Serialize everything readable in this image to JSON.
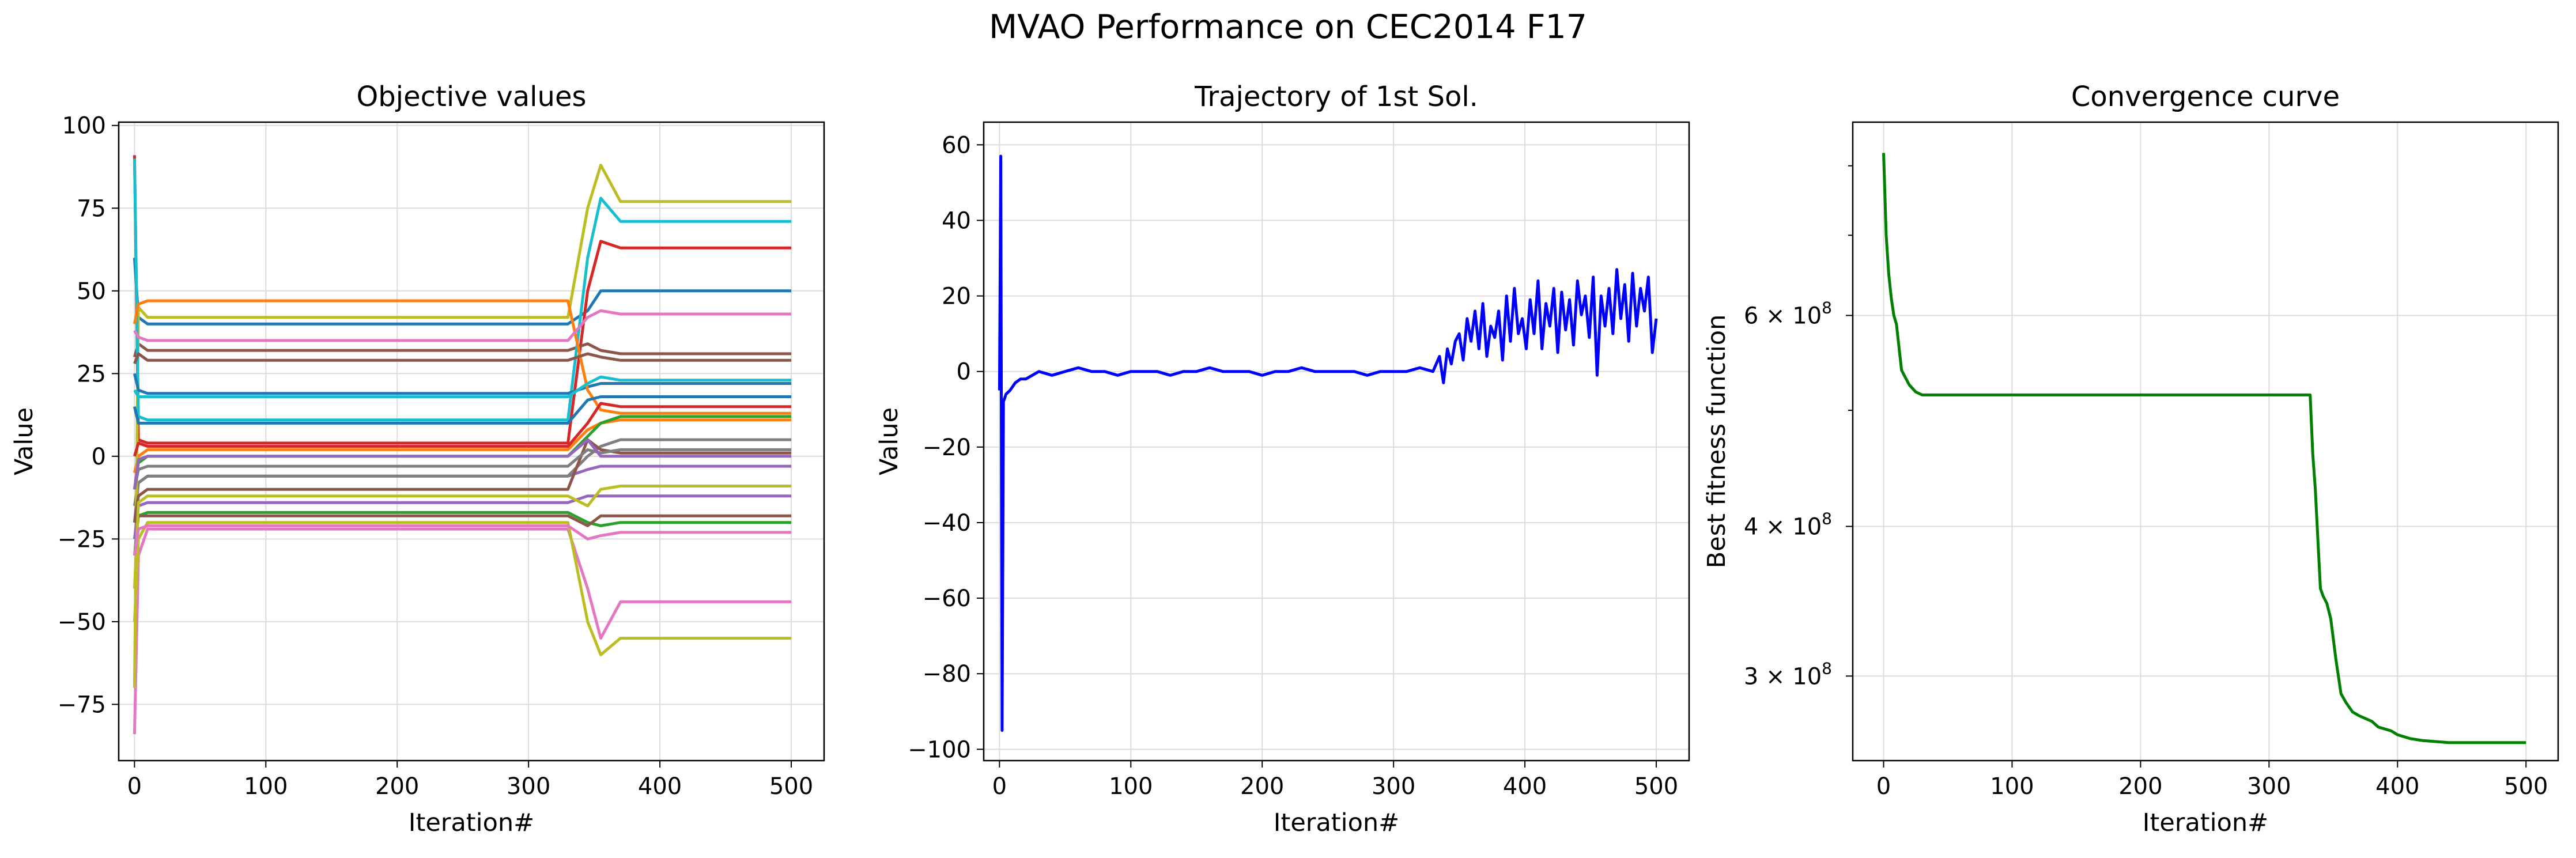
{
  "figure": {
    "title": "MVAO Performance on CEC2014 F17"
  },
  "chart_data": [
    {
      "type": "line",
      "title": "Objective values",
      "xlabel": "Iteration#",
      "ylabel": "Value",
      "xlim": [
        -12,
        525
      ],
      "ylim": [
        -92,
        101
      ],
      "xticks": [
        0,
        100,
        200,
        300,
        400,
        500
      ],
      "yticks": [
        -75,
        -50,
        -25,
        0,
        25,
        50,
        75,
        100
      ],
      "ytick_labels": [
        "−75",
        "−50",
        "−25",
        "0",
        "25",
        "50",
        "75",
        "100"
      ],
      "grid": true,
      "series_note_color_cycle": [
        "#1f77b4",
        "#ff7f0e",
        "#2ca02c",
        "#d62728",
        "#9467bd",
        "#8c564b",
        "#e377c2",
        "#7f7f7f",
        "#bcbd22",
        "#17becf"
      ],
      "series": [
        {
          "color": "#1f77b4",
          "x": [
            0,
            3,
            10,
            30,
            330,
            345,
            355,
            370,
            500
          ],
          "y": [
            60,
            42,
            40,
            40,
            40,
            44,
            50,
            50,
            50
          ]
        },
        {
          "color": "#ff7f0e",
          "x": [
            0,
            3,
            10,
            30,
            330,
            345,
            355,
            370,
            500
          ],
          "y": [
            -5,
            0,
            2,
            2,
            2,
            8,
            10,
            11,
            11
          ]
        },
        {
          "color": "#2ca02c",
          "x": [
            0,
            3,
            10,
            30,
            330,
            345,
            355,
            370,
            500
          ],
          "y": [
            -10,
            -2,
            0,
            0,
            0,
            6,
            10,
            12,
            12
          ]
        },
        {
          "color": "#d62728",
          "x": [
            0,
            3,
            10,
            30,
            330,
            345,
            355,
            370,
            500
          ],
          "y": [
            91,
            5,
            4,
            4,
            4,
            50,
            65,
            63,
            63
          ]
        },
        {
          "color": "#9467bd",
          "x": [
            0,
            3,
            10,
            30,
            330,
            345,
            355,
            370,
            500
          ],
          "y": [
            -20,
            -8,
            -6,
            -6,
            -6,
            -4,
            -3,
            -3,
            -3
          ]
        },
        {
          "color": "#8c564b",
          "x": [
            0,
            3,
            10,
            30,
            330,
            345,
            355,
            370,
            500
          ],
          "y": [
            30,
            34,
            32,
            32,
            32,
            34,
            32,
            31,
            31
          ]
        },
        {
          "color": "#e377c2",
          "x": [
            0,
            3,
            10,
            30,
            330,
            345,
            355,
            370,
            500
          ],
          "y": [
            -84,
            -30,
            -22,
            -22,
            -22,
            -40,
            -55,
            -44,
            -44
          ]
        },
        {
          "color": "#7f7f7f",
          "x": [
            0,
            3,
            10,
            30,
            330,
            345,
            355,
            370,
            500
          ],
          "y": [
            -15,
            -8,
            -6,
            -6,
            -6,
            0,
            3,
            5,
            5
          ]
        },
        {
          "color": "#bcbd22",
          "x": [
            0,
            3,
            10,
            30,
            330,
            345,
            355,
            370,
            500
          ],
          "y": [
            -70,
            45,
            42,
            42,
            42,
            75,
            88,
            77,
            77
          ]
        },
        {
          "color": "#17becf",
          "x": [
            0,
            3,
            10,
            30,
            330,
            345,
            355,
            370,
            500
          ],
          "y": [
            90,
            12,
            11,
            11,
            11,
            60,
            78,
            71,
            71
          ]
        },
        {
          "color": "#1f77b4",
          "x": [
            0,
            3,
            10,
            30,
            330,
            345,
            355,
            370,
            500
          ],
          "y": [
            25,
            20,
            19,
            19,
            19,
            21,
            22,
            22,
            22
          ]
        },
        {
          "color": "#ff7f0e",
          "x": [
            0,
            3,
            10,
            30,
            330,
            345,
            355,
            370,
            500
          ],
          "y": [
            40,
            46,
            47,
            47,
            47,
            20,
            14,
            13,
            13
          ]
        },
        {
          "color": "#2ca02c",
          "x": [
            0,
            3,
            10,
            30,
            330,
            345,
            355,
            370,
            500
          ],
          "y": [
            -30,
            -18,
            -17,
            -17,
            -17,
            -20,
            -21,
            -20,
            -20
          ]
        },
        {
          "color": "#d62728",
          "x": [
            0,
            3,
            10,
            30,
            330,
            345,
            355,
            370,
            500
          ],
          "y": [
            0,
            4,
            3,
            3,
            3,
            10,
            16,
            15,
            15
          ]
        },
        {
          "color": "#9467bd",
          "x": [
            0,
            3,
            10,
            30,
            330,
            345,
            355,
            370,
            500
          ],
          "y": [
            -25,
            -15,
            -14,
            -14,
            -14,
            -12,
            -12,
            -12,
            -12
          ]
        },
        {
          "color": "#8c564b",
          "x": [
            0,
            3,
            10,
            30,
            330,
            345,
            355,
            370,
            500
          ],
          "y": [
            -20,
            -12,
            -10,
            -10,
            -10,
            5,
            2,
            1,
            1
          ]
        },
        {
          "color": "#e377c2",
          "x": [
            0,
            3,
            10,
            30,
            330,
            345,
            355,
            370,
            500
          ],
          "y": [
            38,
            36,
            35,
            35,
            35,
            42,
            44,
            43,
            43
          ]
        },
        {
          "color": "#7f7f7f",
          "x": [
            0,
            3,
            10,
            30,
            330,
            345,
            355,
            370,
            500
          ],
          "y": [
            -10,
            -4,
            -3,
            -3,
            -3,
            2,
            1,
            2,
            2
          ]
        },
        {
          "color": "#bcbd22",
          "x": [
            0,
            3,
            10,
            30,
            330,
            345,
            355,
            370,
            500
          ],
          "y": [
            -50,
            -25,
            -20,
            -20,
            -20,
            -50,
            -60,
            -55,
            -55
          ]
        },
        {
          "color": "#17becf",
          "x": [
            0,
            3,
            10,
            30,
            330,
            345,
            355,
            370,
            500
          ],
          "y": [
            20,
            18,
            18,
            18,
            18,
            22,
            24,
            23,
            23
          ]
        },
        {
          "color": "#1f77b4",
          "x": [
            0,
            3,
            10,
            30,
            330,
            345,
            355,
            370,
            500
          ],
          "y": [
            15,
            10,
            10,
            10,
            10,
            17,
            18,
            18,
            18
          ]
        },
        {
          "color": "#8c564b",
          "x": [
            0,
            3,
            10,
            30,
            330,
            345,
            355,
            370,
            500
          ],
          "y": [
            -20,
            -18,
            -18,
            -18,
            -18,
            -21,
            -18,
            -18,
            -18
          ]
        },
        {
          "color": "#9467bd",
          "x": [
            0,
            3,
            10,
            30,
            330,
            345,
            355,
            370,
            500
          ],
          "y": [
            -10,
            -1,
            0,
            0,
            0,
            5,
            0,
            0,
            0
          ]
        },
        {
          "color": "#bcbd22",
          "x": [
            0,
            3,
            10,
            30,
            330,
            345,
            355,
            370,
            500
          ],
          "y": [
            -40,
            -14,
            -12,
            -12,
            -12,
            -15,
            -10,
            -9,
            -9
          ]
        },
        {
          "color": "#e377c2",
          "x": [
            0,
            3,
            10,
            30,
            330,
            345,
            355,
            370,
            500
          ],
          "y": [
            -30,
            -22,
            -21,
            -21,
            -21,
            -25,
            -24,
            -23,
            -23
          ]
        },
        {
          "color": "#8c564b",
          "x": [
            0,
            3,
            10,
            30,
            330,
            345,
            355,
            370,
            500
          ],
          "y": [
            28,
            31,
            29,
            29,
            29,
            31,
            30,
            29,
            29
          ]
        }
      ]
    },
    {
      "type": "line",
      "title": "Trajectory of 1st Sol.",
      "xlabel": "Iteration#",
      "ylabel": "Value",
      "xlim": [
        -12,
        525
      ],
      "ylim": [
        -103,
        66
      ],
      "xticks": [
        0,
        100,
        200,
        300,
        400,
        500
      ],
      "yticks": [
        -100,
        -80,
        -60,
        -40,
        -20,
        0,
        20,
        40,
        60
      ],
      "ytick_labels": [
        "−100",
        "−80",
        "−60",
        "−40",
        "−20",
        "0",
        "20",
        "40",
        "60"
      ],
      "grid": true,
      "series": [
        {
          "color": "#0000ff",
          "x": [
            0,
            1,
            2,
            3,
            5,
            8,
            12,
            16,
            20,
            25,
            30,
            40,
            50,
            60,
            70,
            80,
            90,
            100,
            110,
            120,
            130,
            140,
            150,
            160,
            170,
            180,
            190,
            200,
            210,
            220,
            230,
            240,
            250,
            260,
            270,
            280,
            290,
            300,
            310,
            320,
            330,
            335,
            338,
            341,
            344,
            347,
            350,
            353,
            356,
            359,
            362,
            365,
            368,
            371,
            374,
            377,
            380,
            383,
            386,
            389,
            392,
            395,
            398,
            401,
            404,
            407,
            410,
            413,
            416,
            419,
            422,
            425,
            428,
            431,
            434,
            437,
            440,
            443,
            446,
            449,
            452,
            455,
            458,
            461,
            464,
            467,
            470,
            473,
            476,
            479,
            482,
            485,
            488,
            491,
            494,
            497,
            500
          ],
          "y": [
            -5,
            57,
            -95,
            -8,
            -6,
            -5,
            -3,
            -2,
            -2,
            -1,
            0,
            -1,
            0,
            1,
            0,
            0,
            -1,
            0,
            0,
            0,
            -1,
            0,
            0,
            1,
            0,
            0,
            0,
            -1,
            0,
            0,
            1,
            0,
            0,
            0,
            0,
            -1,
            0,
            0,
            0,
            1,
            0,
            4,
            -3,
            6,
            2,
            8,
            10,
            3,
            14,
            8,
            16,
            6,
            18,
            4,
            12,
            9,
            16,
            3,
            20,
            8,
            22,
            10,
            14,
            6,
            19,
            10,
            24,
            6,
            18,
            12,
            22,
            5,
            21,
            11,
            19,
            7,
            24,
            15,
            20,
            9,
            25,
            -1,
            20,
            12,
            22,
            10,
            27,
            14,
            23,
            8,
            26,
            12,
            22,
            16,
            25,
            5,
            14
          ]
        }
      ]
    },
    {
      "type": "line",
      "title": "Convergence curve",
      "xlabel": "Iteration#",
      "ylabel": "Best fitness function",
      "yscale": "log",
      "xlim": [
        -24,
        525
      ],
      "ylim": [
        255000000,
        870000000
      ],
      "xticks": [
        0,
        100,
        200,
        300,
        400,
        500
      ],
      "yticks": [
        300000000,
        400000000,
        600000000
      ],
      "ytick_labels": [
        "3 × 10",
        "4 × 10",
        "6 × 10"
      ],
      "ytick_exponent": "8",
      "grid": true,
      "series": [
        {
          "color": "#008000",
          "x": [
            0,
            2,
            4,
            6,
            8,
            10,
            14,
            20,
            25,
            30,
            332,
            334,
            336,
            338,
            340,
            342,
            345,
            348,
            352,
            356,
            360,
            365,
            370,
            380,
            385,
            395,
            400,
            410,
            420,
            430,
            440,
            460,
            480,
            500
          ],
          "y": [
            820000000,
            700000000,
            650000000,
            620000000,
            600000000,
            590000000,
            540000000,
            525000000,
            518000000,
            515000000,
            515000000,
            460000000,
            430000000,
            390000000,
            355000000,
            350000000,
            345000000,
            335000000,
            310000000,
            290000000,
            285000000,
            280000000,
            278000000,
            275000000,
            272000000,
            270000000,
            268000000,
            266000000,
            265000000,
            264500000,
            264000000,
            264000000,
            264000000,
            264000000
          ]
        }
      ]
    }
  ]
}
